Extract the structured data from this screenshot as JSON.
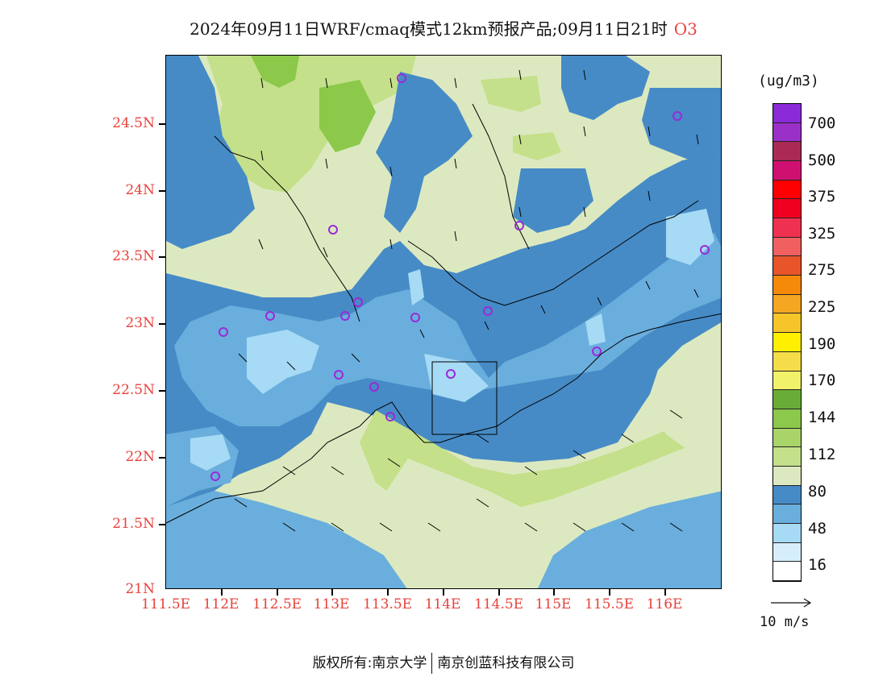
{
  "title": {
    "text": "2024年09月11日WRF/cmaq模式12km预报产品;09月11日21时",
    "species": "O3"
  },
  "axes": {
    "y_labels": [
      "24.5N",
      "24N",
      "23.5N",
      "23N",
      "22.5N",
      "22N",
      "21.5N",
      "21N"
    ],
    "x_labels": [
      "111.5E",
      "112E",
      "112.5E",
      "113E",
      "113.5E",
      "114E",
      "114.5E",
      "115E",
      "115.5E",
      "116E"
    ]
  },
  "colorbar": {
    "unit": "(ug/m3)",
    "colors": [
      "#ffffff",
      "#d6eefb",
      "#a6daf5",
      "#6aaedd",
      "#468bc6",
      "#dce9c0",
      "#c4e08a",
      "#a8d46a",
      "#8cc84a",
      "#6aac38",
      "#f2f26a",
      "#f5dd4a",
      "#fff000",
      "#f5c52a",
      "#f5a623",
      "#f58a0a",
      "#e8552a",
      "#f06060",
      "#f03050",
      "#f00020",
      "#fe0000",
      "#d01070",
      "#aa2a55",
      "#9a30c8",
      "#8a2ad8"
    ],
    "labels": [
      "16",
      "48",
      "80",
      "112",
      "144",
      "170",
      "190",
      "225",
      "275",
      "325",
      "375",
      "500",
      "700"
    ]
  },
  "reference_vector": {
    "label": "10 m/s"
  },
  "footer": {
    "left": "版权所有:南京大学",
    "right": "南京创蓝科技有限公司"
  }
}
